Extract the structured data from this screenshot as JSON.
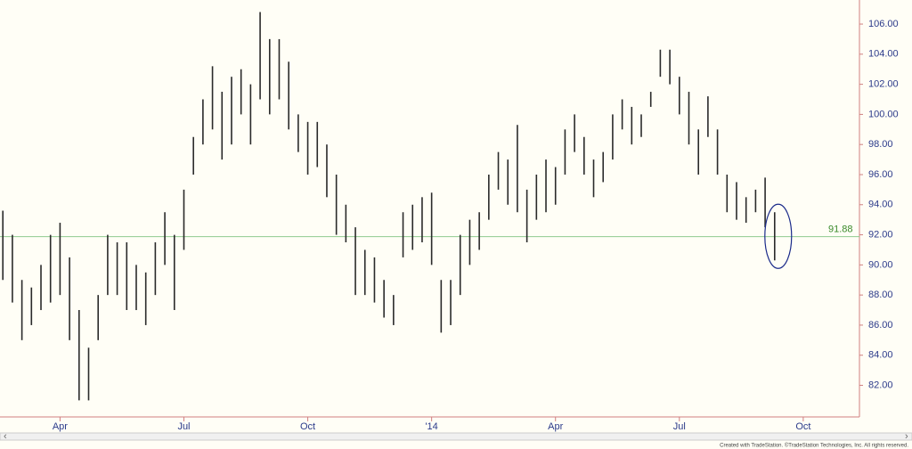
{
  "chart_data": {
    "type": "ohlc",
    "x": [
      0,
      1,
      2,
      3,
      4,
      5,
      6,
      7,
      8,
      9,
      10,
      11,
      12,
      13,
      14,
      15,
      16,
      17,
      18,
      19,
      20,
      21,
      22,
      23,
      24,
      25,
      26,
      27,
      28,
      29,
      30,
      31,
      32,
      33,
      34,
      35,
      36,
      37,
      38,
      39,
      40,
      41,
      42,
      43,
      44,
      45,
      46,
      47,
      48,
      49,
      50,
      51,
      52,
      53,
      54,
      55,
      56,
      57,
      58,
      59,
      60,
      61,
      62,
      63,
      64,
      65,
      66,
      67,
      68,
      69,
      70,
      71,
      72,
      73,
      74,
      75,
      76,
      77,
      78,
      79,
      80,
      81
    ],
    "high": [
      93.6,
      92,
      89,
      88.5,
      90,
      92,
      92.8,
      90.5,
      87,
      84.5,
      88,
      92,
      91.5,
      91.5,
      90,
      89.5,
      91.5,
      93.5,
      92,
      95,
      98.5,
      101,
      103.2,
      101.5,
      102.5,
      103,
      102,
      106.8,
      105,
      105,
      103.5,
      100,
      99.5,
      99.5,
      98,
      96,
      94,
      92.5,
      91,
      90.5,
      89,
      88,
      93.5,
      94,
      94.5,
      94.8,
      89,
      89,
      92,
      93,
      93.5,
      96,
      97.5,
      97,
      99.3,
      95,
      96,
      97,
      96.5,
      99,
      100,
      98.5,
      97,
      97.5,
      100,
      101,
      100.5,
      100,
      101.5,
      104.3,
      104.3,
      102.5,
      101.5,
      99,
      101.2,
      99,
      96,
      95.5,
      94.5,
      95,
      95.8,
      93.5
    ],
    "low": [
      89,
      87.5,
      85,
      86,
      87,
      87.5,
      88,
      85,
      81,
      81,
      85,
      88,
      88,
      87,
      87,
      86,
      88,
      90,
      87,
      91,
      96,
      98,
      99,
      97,
      98,
      100,
      98,
      101,
      100,
      101,
      99,
      97.5,
      96,
      96.5,
      94.5,
      92,
      91.5,
      88,
      88,
      87.5,
      86.5,
      86,
      90.5,
      91,
      91.5,
      90,
      85.5,
      86,
      88,
      90,
      91,
      93,
      95,
      94,
      93.5,
      91.5,
      93,
      93.5,
      94,
      96,
      97.5,
      96,
      94.5,
      95.5,
      97,
      99,
      98,
      98.5,
      100.5,
      102.5,
      102,
      100,
      98,
      96,
      98.5,
      96,
      93.5,
      93,
      92.8,
      93.5,
      92.5,
      90.3
    ],
    "bar_color": "#2a2a2a",
    "xlim": [
      -0.3,
      89.9
    ],
    "xticks": [
      {
        "value": 6,
        "label": "Apr"
      },
      {
        "value": 19,
        "label": "Jul"
      },
      {
        "value": 32,
        "label": "Oct"
      },
      {
        "value": 45,
        "label": "'14"
      },
      {
        "value": 58,
        "label": "Apr"
      },
      {
        "value": 71,
        "label": "Jul"
      },
      {
        "value": 84,
        "label": "Oct"
      }
    ],
    "ylim": [
      79.9,
      107.6
    ],
    "yticks": [
      {
        "value": 82,
        "label": "82.00"
      },
      {
        "value": 84,
        "label": "84.00"
      },
      {
        "value": 86,
        "label": "86.00"
      },
      {
        "value": 88,
        "label": "88.00"
      },
      {
        "value": 90,
        "label": "90.00"
      },
      {
        "value": 92,
        "label": "92.00"
      },
      {
        "value": 94,
        "label": "94.00"
      },
      {
        "value": 96,
        "label": "96.00"
      },
      {
        "value": 98,
        "label": "98.00"
      },
      {
        "value": 100,
        "label": "100.00"
      },
      {
        "value": 102,
        "label": "102.00"
      },
      {
        "value": 104,
        "label": "104.00"
      },
      {
        "value": 106,
        "label": "106.00"
      }
    ],
    "ref_line": 91.88,
    "ref_color": "#8fc98f",
    "ref_label_color": "#3a8a2a",
    "footer": "Created with TradeStation. ©TradeStation Technologies, Inc. All rights reserved."
  }
}
